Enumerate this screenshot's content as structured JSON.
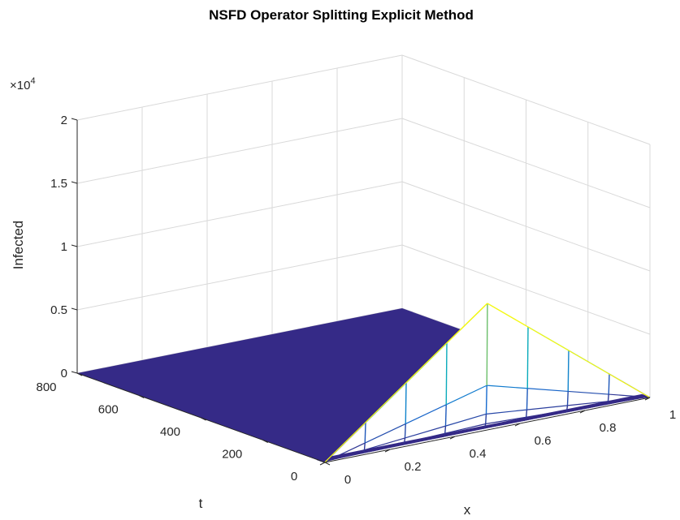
{
  "chart_data": {
    "type": "surface3d",
    "title": "NSFD Operator Splitting Explicit Method",
    "xlabel": "x",
    "ylabel": "t",
    "zlabel": "Infected",
    "z_exponent_label": "×10",
    "z_exponent": "4",
    "xlim": [
      0,
      1
    ],
    "ylim": [
      0,
      800
    ],
    "zlim": [
      0,
      20000
    ],
    "x_ticks": [
      "0",
      "0.2",
      "0.4",
      "0.6",
      "0.8",
      "1"
    ],
    "t_ticks": [
      "0",
      "200",
      "400",
      "600",
      "800"
    ],
    "z_ticks": [
      "0",
      "0.5",
      "1",
      "1.5",
      "2"
    ],
    "grid": true,
    "colormap": "parula",
    "description": "Surface is ~0 (dark blue) for most t; near t=0 a tent-shaped initial profile peaks at x=0.5 with value about 10000, decaying rapidly toward 0 as t increases.",
    "x": [
      0,
      0.125,
      0.25,
      0.375,
      0.5,
      0.625,
      0.75,
      0.875,
      1
    ],
    "initial_profile_t0": [
      0,
      2500,
      5000,
      7500,
      10000,
      7500,
      5000,
      2500,
      0
    ],
    "peak": {
      "x": 0.5,
      "t": 0,
      "value": 10000
    }
  },
  "colors": {
    "surface_low": "#352a87",
    "surface_high": "#f9fb0e",
    "grid": "#d9d9d9",
    "axis": "#262626"
  }
}
